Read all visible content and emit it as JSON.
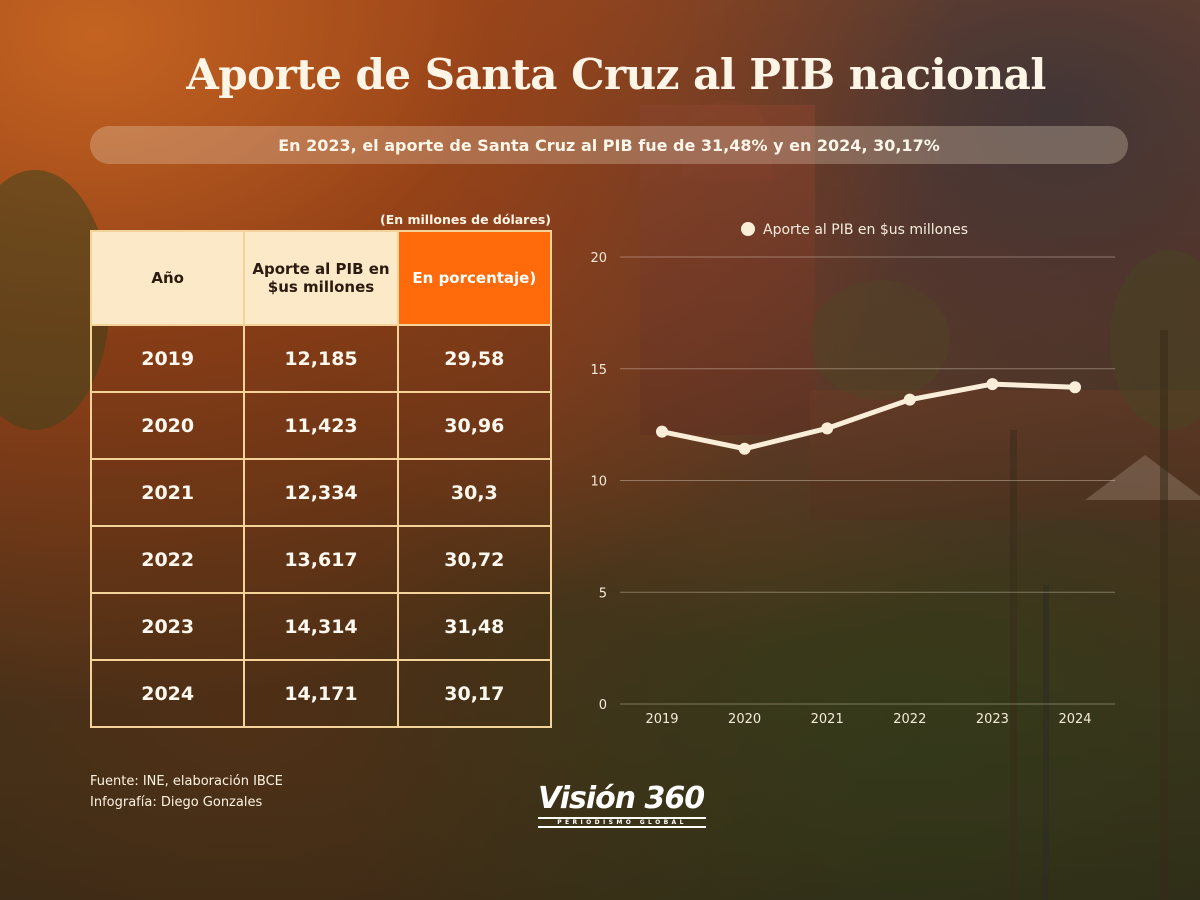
{
  "title": "Aporte de Santa Cruz al PIB nacional",
  "subtitle": "En 2023, el aporte de Santa Cruz al PIB fue de 31,48% y en 2024, 30,17%",
  "unit_note": "(En millones de dólares)",
  "table": {
    "headers": [
      "Año",
      "Aporte al PIB en $us millones",
      "En porcentaje)"
    ],
    "rows": [
      [
        "2019",
        "12,185",
        "29,58"
      ],
      [
        "2020",
        "11,423",
        "30,96"
      ],
      [
        "2021",
        "12,334",
        "30,3"
      ],
      [
        "2022",
        "13,617",
        "30,72"
      ],
      [
        "2023",
        "14,314",
        "31,48"
      ],
      [
        "2024",
        "14,171",
        "30,17"
      ]
    ]
  },
  "chart_data": {
    "type": "line",
    "x": [
      "2019",
      "2020",
      "2021",
      "2022",
      "2023",
      "2024"
    ],
    "series": [
      {
        "name": "Aporte al PIB en $us millones",
        "values": [
          12.185,
          11.423,
          12.334,
          13.617,
          14.314,
          14.171
        ]
      }
    ],
    "ylim": [
      0,
      20
    ],
    "yticks": [
      0,
      5,
      10,
      15,
      20
    ],
    "grid": true,
    "legend": "top",
    "title": "",
    "xlabel": "",
    "ylabel": ""
  },
  "footer": {
    "source": "Fuente:  INE, elaboración IBCE",
    "credit": "Infografía: Diego Gonzales"
  },
  "logo": {
    "main": "Visión 360",
    "sub": "PERIODISMO GLOBAL"
  },
  "colors": {
    "accent": "#ff6a0b",
    "header_bg": "#fbe9c8",
    "border": "#f4d39a",
    "line": "#fbeed8"
  }
}
